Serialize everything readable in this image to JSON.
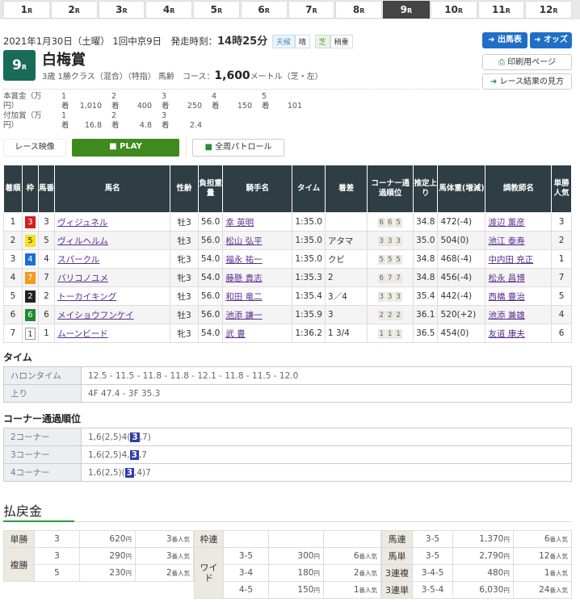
{
  "race_nav": [
    "1",
    "2",
    "3",
    "4",
    "5",
    "6",
    "7",
    "8",
    "9",
    "10",
    "11",
    "12"
  ],
  "race_nav_suffix": "R",
  "active_race": "9",
  "header": {
    "date": "2021年1月30日（土曜） 1回中京9日　発走時刻：",
    "start_time": "14時25分",
    "weather_label": "天候",
    "weather": "晴",
    "track_label": "芝",
    "track_condition": "稍重",
    "race_no": "9",
    "race_suffix": "R",
    "race_name": "白梅賞",
    "conditions": "3歳 1勝クラス（混合）（特指） 馬齢　コース：",
    "distance": "1,600",
    "distance_unit": "メートル（芝・左）"
  },
  "buttons": {
    "entries": "出馬表",
    "odds": "オッズ",
    "print": "印刷用ページ",
    "guide": "レース結果の見方"
  },
  "prize": {
    "main_label1": "本賞金（万",
    "main_label2": "円）",
    "add_label1": "付加賞（万",
    "add_label2": "円）",
    "place_suffix": "着",
    "main": [
      [
        "1",
        "1,010"
      ],
      [
        "2",
        "400"
      ],
      [
        "3",
        "250"
      ],
      [
        "4",
        "150"
      ],
      [
        "5",
        "101"
      ]
    ],
    "add": [
      [
        "1",
        "16.8"
      ],
      [
        "2",
        "4.8"
      ],
      [
        "3",
        "2.4"
      ]
    ]
  },
  "video": {
    "label": "レース映像",
    "play": "PLAY",
    "patrol": "全周パトロール"
  },
  "results": {
    "headers": [
      "着順",
      "枠",
      "馬番",
      "馬名",
      "性齢",
      "負担重量",
      "騎手名",
      "タイム",
      "着差",
      "コーナー通過順位",
      "推定上り",
      "馬体重(増減)",
      "調教師名",
      "単勝人気"
    ],
    "waku_colors": {
      "1": "#ffffff",
      "2": "#222222",
      "3": "#d32020",
      "4": "#1c6fd0",
      "5": "#f5e31a",
      "6": "#218a2e",
      "7": "#f39a1c"
    },
    "rows": [
      {
        "rank": "1",
        "waku": "3",
        "num": "3",
        "horse": "ヴィジュネル",
        "sexage": "牡3",
        "weight": "56.0",
        "jockey": "幸 英明",
        "time": "1:35.0",
        "margin": "",
        "corners": [
          "6",
          "6",
          "5"
        ],
        "last": "34.8",
        "body": "472(-4)",
        "trainer": "渡辺 薫彦",
        "pop": "3"
      },
      {
        "rank": "2",
        "waku": "5",
        "num": "5",
        "horse": "ヴィルヘルム",
        "sexage": "牡3",
        "weight": "56.0",
        "jockey": "松山 弘平",
        "time": "1:35.0",
        "margin": "アタマ",
        "corners": [
          "3",
          "3",
          "3"
        ],
        "last": "35.0",
        "body": "504(0)",
        "trainer": "池江 泰寿",
        "pop": "2"
      },
      {
        "rank": "3",
        "waku": "4",
        "num": "4",
        "horse": "スパークル",
        "sexage": "牝3",
        "weight": "54.0",
        "jockey": "福永 祐一",
        "time": "1:35.0",
        "margin": "クビ",
        "corners": [
          "5",
          "5",
          "5"
        ],
        "last": "34.8",
        "body": "468(-4)",
        "trainer": "中内田 充正",
        "pop": "1"
      },
      {
        "rank": "4",
        "waku": "7",
        "num": "7",
        "horse": "バリコノユメ",
        "sexage": "牝3",
        "weight": "54.0",
        "jockey": "藤懸 貴志",
        "time": "1:35.3",
        "margin": "2",
        "corners": [
          "6",
          "7",
          "7"
        ],
        "last": "34.8",
        "body": "456(-4)",
        "trainer": "松永 昌博",
        "pop": "7"
      },
      {
        "rank": "5",
        "waku": "2",
        "num": "2",
        "horse": "トーカイキング",
        "sexage": "牡3",
        "weight": "56.0",
        "jockey": "和田 竜二",
        "time": "1:35.4",
        "margin": "3／4",
        "corners": [
          "3",
          "3",
          "3"
        ],
        "last": "35.4",
        "body": "442(-4)",
        "trainer": "西橋 豊治",
        "pop": "5"
      },
      {
        "rank": "6",
        "waku": "6",
        "num": "6",
        "horse": "メイショウフンケイ",
        "sexage": "牡3",
        "weight": "56.0",
        "jockey": "池添 謙一",
        "time": "1:35.9",
        "margin": "3",
        "corners": [
          "2",
          "2",
          "2"
        ],
        "last": "36.1",
        "body": "520(+2)",
        "trainer": "池添 兼雄",
        "pop": "4"
      },
      {
        "rank": "7",
        "waku": "1",
        "num": "1",
        "horse": "ムーンビード",
        "sexage": "牝3",
        "weight": "54.0",
        "jockey": "武 豊",
        "time": "1:36.2",
        "margin": "1 3/4",
        "corners": [
          "1",
          "1",
          "1"
        ],
        "last": "36.5",
        "body": "454(0)",
        "trainer": "友道 康夫",
        "pop": "6"
      }
    ]
  },
  "time_section": {
    "title": "タイム",
    "rows": [
      {
        "label": "ハロンタイム",
        "value": "12.5 - 11.5 - 11.8 - 11.8 - 12.1 - 11.8 - 11.5 - 12.0"
      },
      {
        "label": "上り",
        "value": "4F 47.4 - 3F 35.3"
      }
    ]
  },
  "corner_section": {
    "title": "コーナー通過順位",
    "rows": [
      {
        "label": "2コーナー",
        "pre": "1,6(2,5)4(",
        "hl": "3",
        "post": ",7)"
      },
      {
        "label": "3コーナー",
        "pre": "1,6(2,5)4,",
        "hl": "3",
        "post": ",7"
      },
      {
        "label": "4コーナー",
        "pre": "1,6(2,5)(",
        "hl": "3",
        "post": ",4)7"
      }
    ]
  },
  "payout": {
    "title": "払戻金",
    "yen": "円",
    "pop_suffix": "番人気",
    "tansho": {
      "label": "単勝",
      "rows": [
        [
          "3",
          "620",
          "3"
        ]
      ]
    },
    "fukusho": {
      "label": "複勝",
      "rows": [
        [
          "3",
          "290",
          "3"
        ],
        [
          "5",
          "230",
          "2"
        ]
      ]
    },
    "wakuren": {
      "label": "枠連",
      "rows": []
    },
    "wide": {
      "label": "ワイド",
      "rows": [
        [
          "3-5",
          "300",
          "6"
        ],
        [
          "3-4",
          "180",
          "2"
        ],
        [
          "4-5",
          "150",
          "1"
        ]
      ]
    },
    "right": [
      {
        "label": "馬連",
        "combo": "3-5",
        "amount": "1,370",
        "pop": "6"
      },
      {
        "label": "馬単",
        "combo": "3-5",
        "amount": "2,790",
        "pop": "12"
      },
      {
        "label": "3連複",
        "combo": "3-4-5",
        "amount": "480",
        "pop": "1"
      },
      {
        "label": "3連単",
        "combo": "3-5-4",
        "amount": "6,030",
        "pop": "24"
      }
    ]
  }
}
